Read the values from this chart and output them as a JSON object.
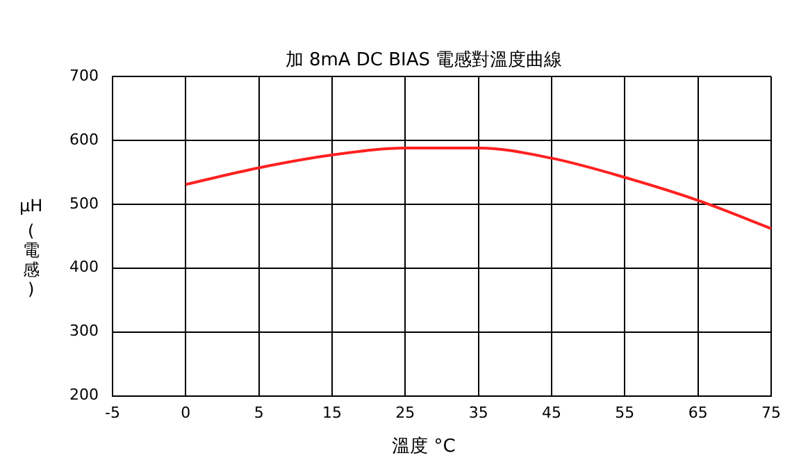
{
  "chart_data": {
    "type": "line",
    "title": "加 8mA DC BIAS 電感對溫度曲線",
    "xlabel": "溫度 °C",
    "ylabel": "μH (電感)",
    "categories": [
      "-5",
      "0",
      "5",
      "15",
      "25",
      "35",
      "45",
      "55",
      "65",
      "75"
    ],
    "series": [
      {
        "color": "#ff2020",
        "values": [
          null,
          531,
          557,
          577,
          588,
          588,
          572,
          542,
          506,
          462
        ]
      }
    ],
    "ylim": [
      200,
      700
    ],
    "yticks": [
      200,
      300,
      400,
      500,
      600,
      700
    ],
    "grid": true,
    "legend": false,
    "marker": "none",
    "line_style": "solid"
  }
}
